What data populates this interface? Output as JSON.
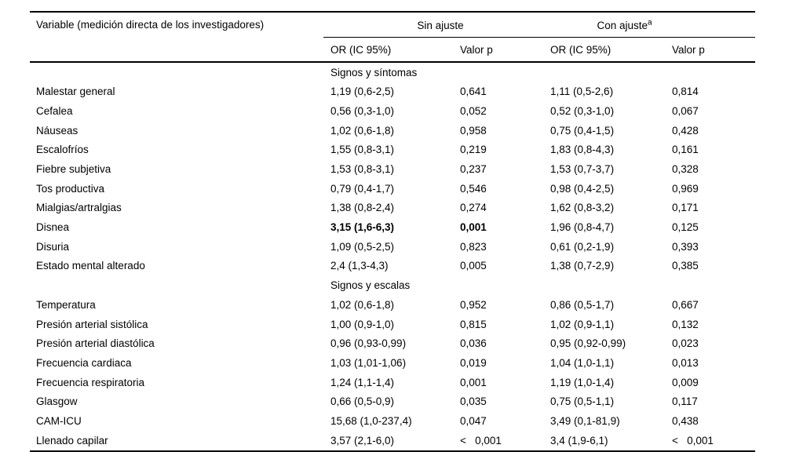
{
  "page": {
    "background": "#ffffff",
    "text_color": "#000000",
    "rule_color": "#000000"
  },
  "table": {
    "variable_header": "Variable (medición directa de los investigadores)",
    "group_unadjusted": "Sin ajuste",
    "group_adjusted": "Con ajuste",
    "group_adjusted_sup": "a",
    "subheaders": [
      "OR (IC 95%)",
      "Valor p",
      "OR (IC 95%)",
      "Valor p"
    ],
    "sections": [
      {
        "title": "Signos y síntomas",
        "rows": [
          {
            "variable": "Malestar general",
            "or_unadj": "1,19 (0,6-2,5)",
            "p_unadj": "0,641",
            "or_adj": "1,11 (0,5-2,6)",
            "p_adj": "0,814",
            "bold_unadj": false
          },
          {
            "variable": "Cefalea",
            "or_unadj": "0,56 (0,3-1,0)",
            "p_unadj": "0,052",
            "or_adj": "0,52 (0,3-1,0)",
            "p_adj": "0,067",
            "bold_unadj": false
          },
          {
            "variable": "Náuseas",
            "or_unadj": "1,02 (0,6-1,8)",
            "p_unadj": "0,958",
            "or_adj": "0,75 (0,4-1,5)",
            "p_adj": "0,428",
            "bold_unadj": false
          },
          {
            "variable": "Escalofríos",
            "or_unadj": "1,55 (0,8-3,1)",
            "p_unadj": "0,219",
            "or_adj": "1,83 (0,8-4,3)",
            "p_adj": "0,161",
            "bold_unadj": false
          },
          {
            "variable": "Fiebre subjetiva",
            "or_unadj": "1,53 (0,8-3,1)",
            "p_unadj": "0,237",
            "or_adj": "1,53 (0,7-3,7)",
            "p_adj": "0,328",
            "bold_unadj": false
          },
          {
            "variable": "Tos productiva",
            "or_unadj": "0,79 (0,4-1,7)",
            "p_unadj": "0,546",
            "or_adj": "0,98 (0,4-2,5)",
            "p_adj": "0,969",
            "bold_unadj": false
          },
          {
            "variable": "Mialgias/artralgias",
            "or_unadj": "1,38 (0,8-2,4)",
            "p_unadj": "0,274",
            "or_adj": "1,62 (0,8-3,2)",
            "p_adj": "0,171",
            "bold_unadj": false
          },
          {
            "variable": "Disnea",
            "or_unadj": "3,15 (1,6-6,3)",
            "p_unadj": "0,001",
            "or_adj": "1,96 (0,8-4,7)",
            "p_adj": "0,125",
            "bold_unadj": true
          },
          {
            "variable": "Disuria",
            "or_unadj": "1,09 (0,5-2,5)",
            "p_unadj": "0,823",
            "or_adj": "0,61 (0,2-1,9)",
            "p_adj": "0,393",
            "bold_unadj": false
          },
          {
            "variable": "Estado mental alterado",
            "or_unadj": "2,4 (1,3-4,3)",
            "p_unadj": "0,005",
            "or_adj": "1,38 (0,7-2,9)",
            "p_adj": "0,385",
            "bold_unadj": false
          }
        ]
      },
      {
        "title": "Signos y escalas",
        "rows": [
          {
            "variable": "Temperatura",
            "or_unadj": "1,02 (0,6-1,8)",
            "p_unadj": "0,952",
            "or_adj": "0,86 (0,5-1,7)",
            "p_adj": "0,667",
            "bold_unadj": false
          },
          {
            "variable": "Presión arterial sistólica",
            "or_unadj": "1,00 (0,9-1,0)",
            "p_unadj": "0,815",
            "or_adj": "1,02 (0,9-1,1)",
            "p_adj": "0,132",
            "bold_unadj": false
          },
          {
            "variable": "Presión arterial diastólica",
            "or_unadj": "0,96 (0,93-0,99)",
            "p_unadj": "0,036",
            "or_adj": "0,95 (0,92-0,99)",
            "p_adj": "0,023",
            "bold_unadj": false
          },
          {
            "variable": "Frecuencia cardiaca",
            "or_unadj": "1,03 (1,01-1,06)",
            "p_unadj": "0,019",
            "or_adj": "1,04 (1,0-1,1)",
            "p_adj": "0,013",
            "bold_unadj": false
          },
          {
            "variable": "Frecuencia respiratoria",
            "or_unadj": "1,24 (1,1-1,4)",
            "p_unadj": "0,001",
            "or_adj": "1,19 (1,0-1,4)",
            "p_adj": "0,009",
            "bold_unadj": false
          },
          {
            "variable": "Glasgow",
            "or_unadj": "0,66 (0,5-0,9)",
            "p_unadj": "0,035",
            "or_adj": "0,75 (0,5-1,1)",
            "p_adj": "0,117",
            "bold_unadj": false
          },
          {
            "variable": "CAM-ICU",
            "or_unadj": "15,68 (1,0-237,4)",
            "p_unadj": "0,047",
            "or_adj": "3,49 (0,1-81,9)",
            "p_adj": "0,438",
            "bold_unadj": false
          },
          {
            "variable": "Llenado capilar",
            "or_unadj": "3,57 (2,1-6,0)",
            "p_unadj": "<   0,001",
            "or_adj": "3,4 (1,9-6,1)",
            "p_adj": "<   0,001",
            "bold_unadj": false
          }
        ]
      }
    ]
  }
}
